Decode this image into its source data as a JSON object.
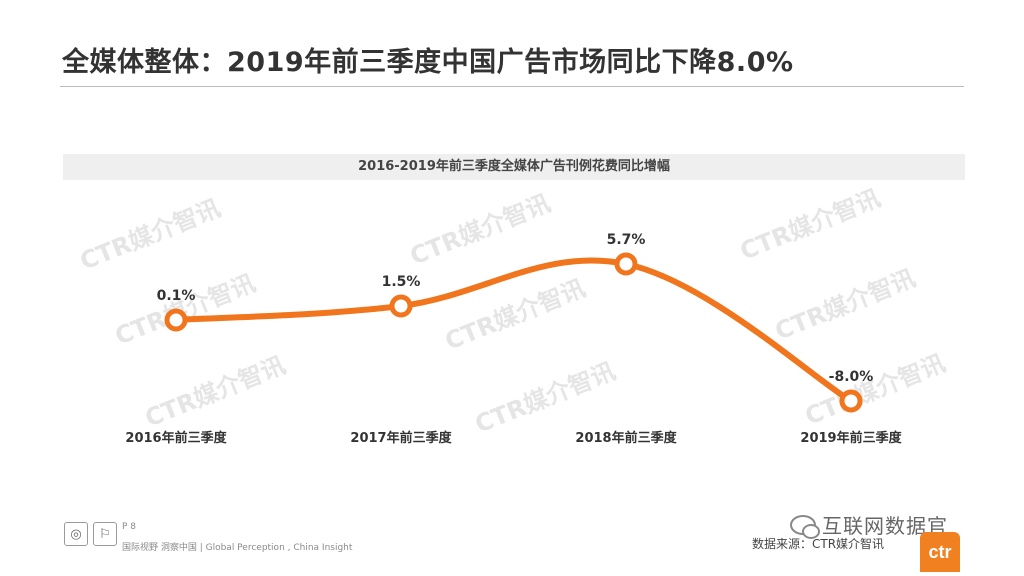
{
  "page_title": "全媒体整体：2019年前三季度中国广告市场同比下降8.0%",
  "footer": {
    "page_number": "P 8",
    "tagline": "国际视野  洞察中国 |  Global Perception , China Insight",
    "source": "数据来源：CTR媒介智讯",
    "wechat_name": "互联网数据官",
    "logo_text": "ctr"
  },
  "watermark_text": "CTR媒介智讯",
  "colors": {
    "line": "#f0751d",
    "marker_fill": "#ffffff",
    "band": "#efefef"
  },
  "chart_data": {
    "type": "line",
    "title": "2016-2019年前三季度全媒体广告刊例花费同比增幅",
    "categories": [
      "2016年前三季度",
      "2017年前三季度",
      "2018年前三季度",
      "2019年前三季度"
    ],
    "values": [
      0.1,
      1.5,
      5.7,
      -8.0
    ],
    "value_labels": [
      "0.1%",
      "1.5%",
      "5.7%",
      "-8.0%"
    ],
    "unit": "%",
    "xlabel": "",
    "ylabel": "",
    "grid": false,
    "smooth": true
  }
}
